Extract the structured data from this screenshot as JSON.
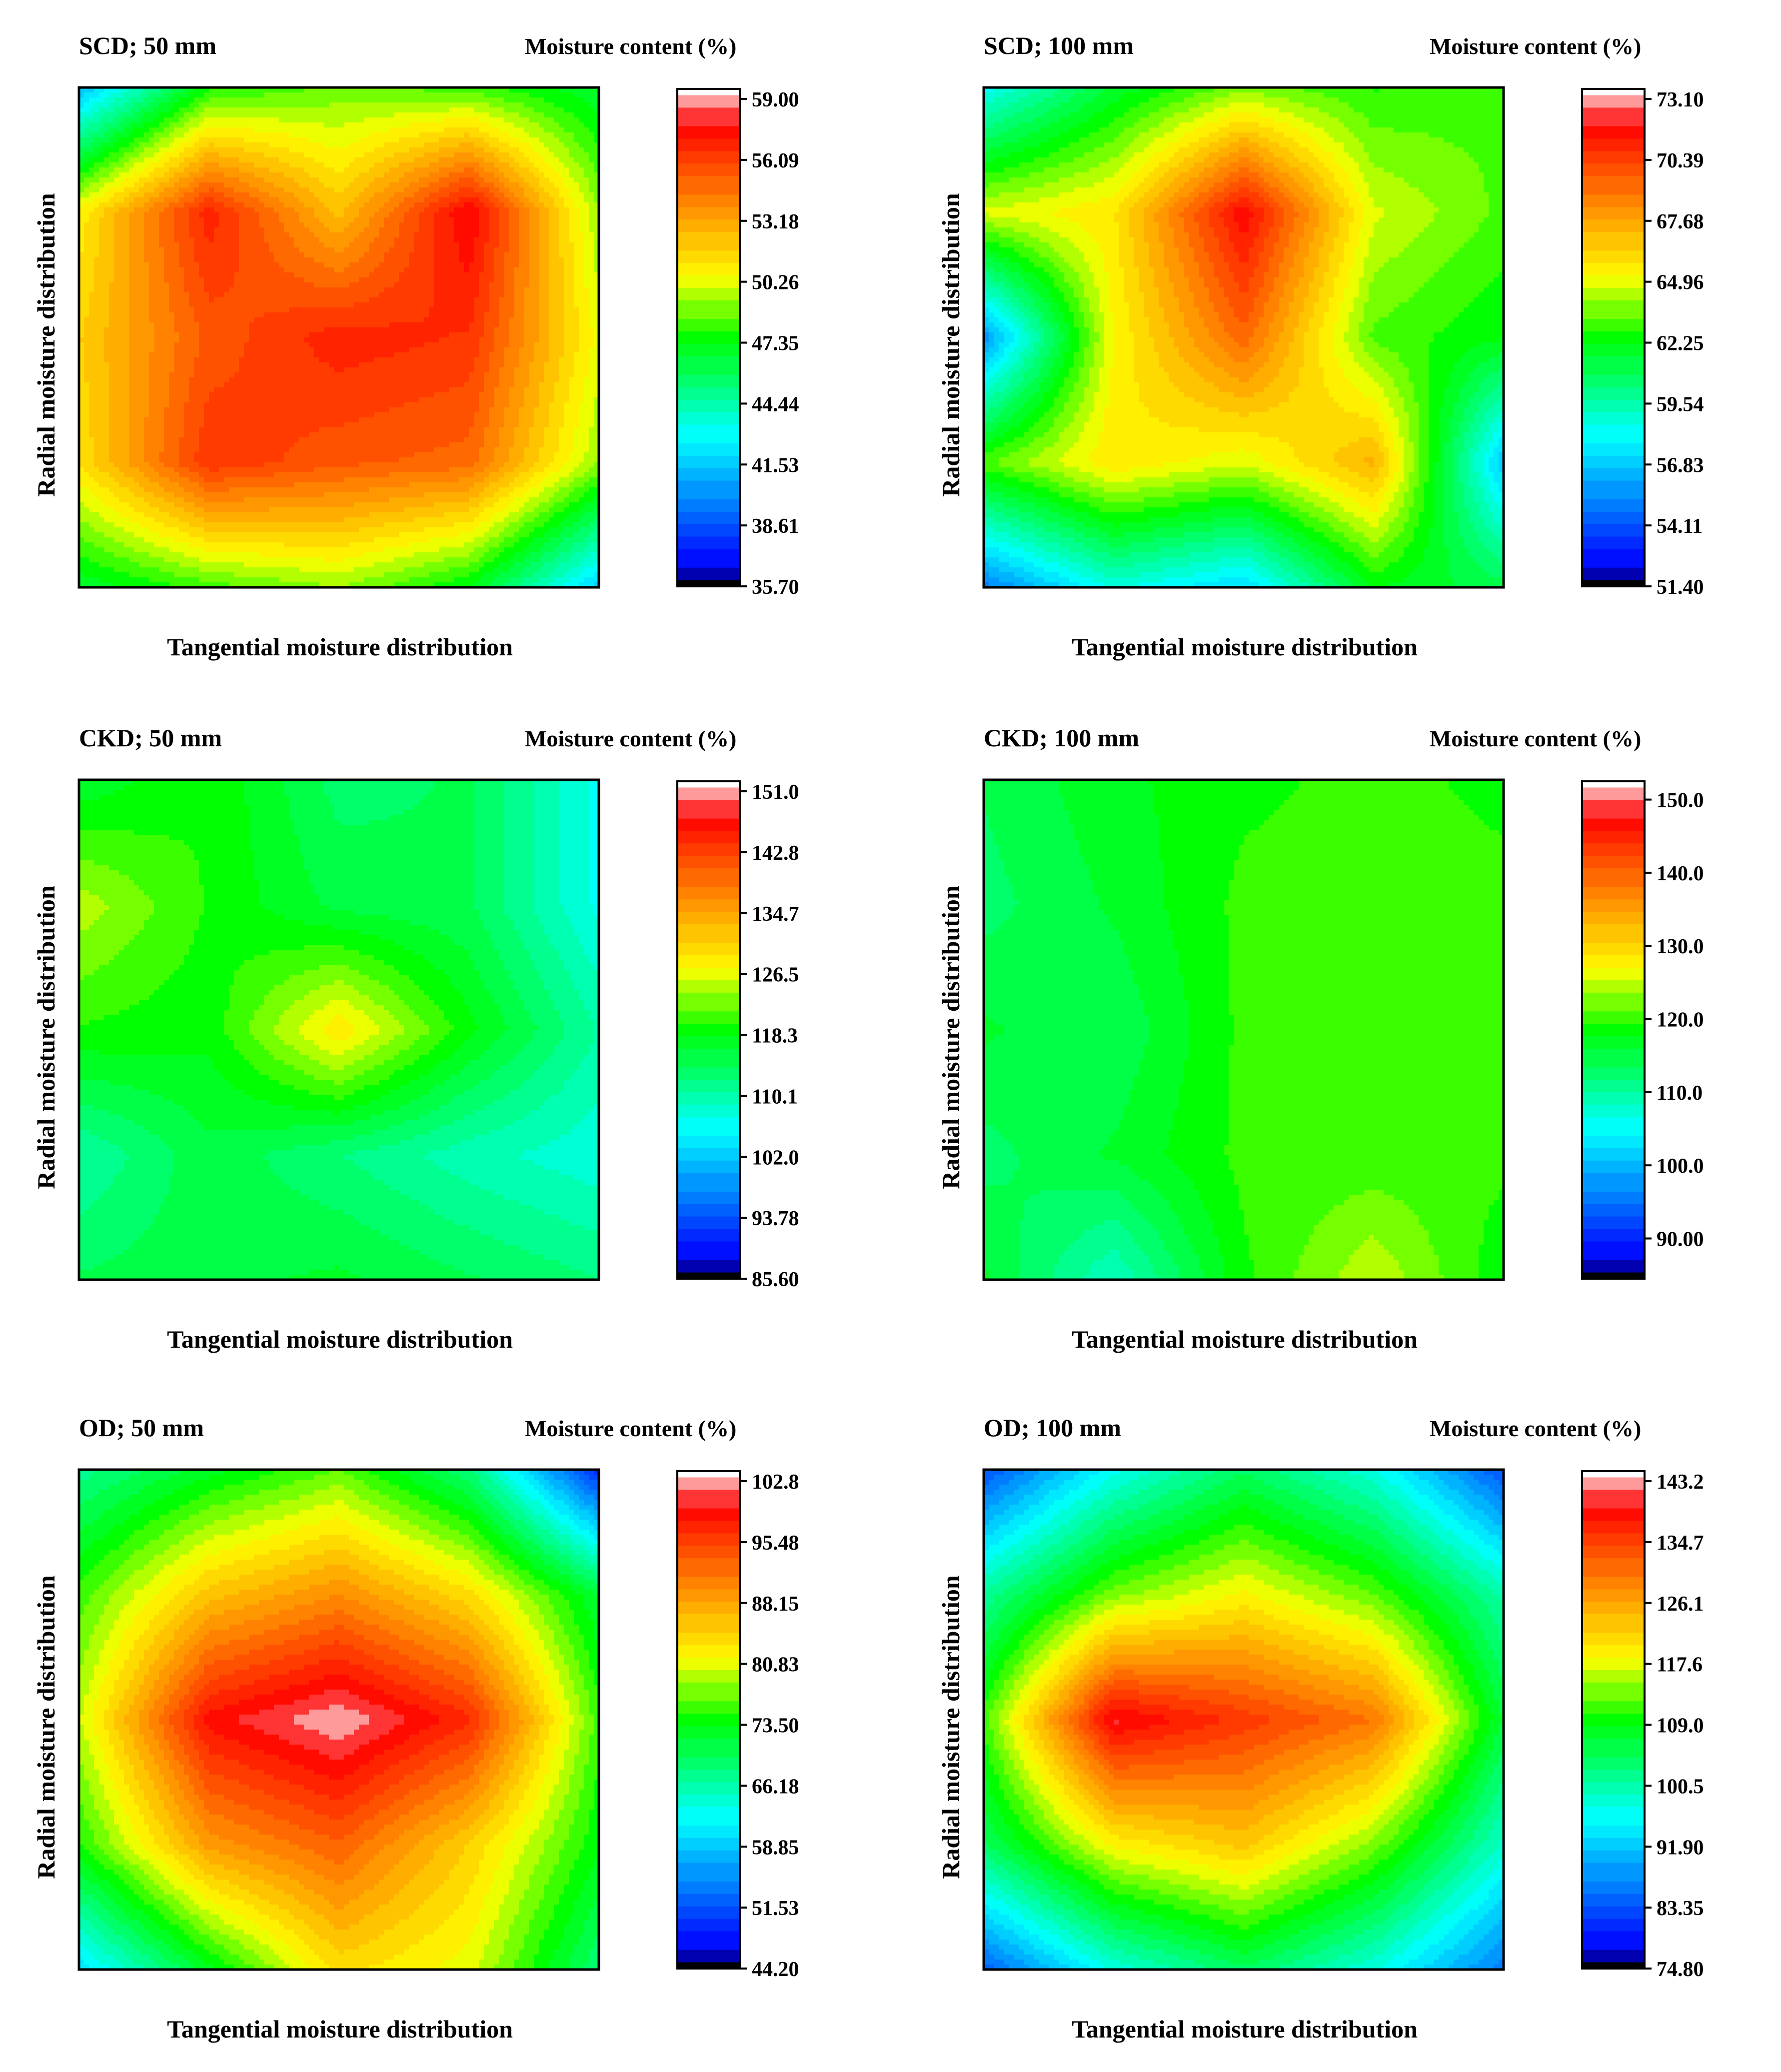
{
  "figure": {
    "colors": {
      "frame": "#000000",
      "background": "#ffffff"
    },
    "colormap": [
      "#000000",
      "#0000ff",
      "#00ffff",
      "#00ff00",
      "#ffff00",
      "#ff8000",
      "#ff0000",
      "#ffffff"
    ]
  },
  "chart_data": [
    {
      "type": "heatmap",
      "title": "SCD; 50 mm",
      "xlabel": "Tangential  moisture distribution",
      "ylabel": "Radial moisture distribution",
      "colorbar_title": "Moisture content (%)",
      "colorbar_ticks": [
        "59.00",
        "56.09",
        "53.18",
        "50.26",
        "47.35",
        "44.44",
        "41.53",
        "38.61",
        "35.70"
      ],
      "vmin": 35.7,
      "vmax": 59.0,
      "grid": [
        [
          41.0,
          47.5,
          48.5,
          48.0,
          46.5
        ],
        [
          50.5,
          56.5,
          52.0,
          57.5,
          49.0
        ],
        [
          51.5,
          55.0,
          56.5,
          56.0,
          50.0
        ],
        [
          51.0,
          56.0,
          55.0,
          54.5,
          49.0
        ],
        [
          46.5,
          48.0,
          49.0,
          47.0,
          41.5
        ]
      ]
    },
    {
      "type": "heatmap",
      "title": "SCD; 100 mm",
      "xlabel": "Tangential  moisture distribution",
      "ylabel": "Radial moisture distribution",
      "colorbar_title": "Moisture content (%)",
      "colorbar_ticks": [
        "73.10",
        "70.39",
        "67.68",
        "64.96",
        "62.25",
        "59.54",
        "56.83",
        "54.11",
        "51.40"
      ],
      "vmin": 51.4,
      "vmax": 73.1,
      "grid": [
        [
          58.0,
          61.5,
          63.5,
          62.5,
          63.0
        ],
        [
          64.5,
          65.5,
          71.5,
          64.5,
          63.0
        ],
        [
          55.5,
          65.0,
          69.0,
          63.0,
          62.0
        ],
        [
          63.0,
          65.5,
          64.5,
          67.0,
          56.5
        ],
        [
          55.0,
          58.5,
          57.0,
          62.0,
          61.0
        ]
      ]
    },
    {
      "type": "heatmap",
      "title": "CKD; 50 mm",
      "xlabel": "Tangential moisture distribution",
      "ylabel": "Radial moisture distribution",
      "colorbar_title": "Moisture content (%)",
      "colorbar_ticks": [
        "151.0",
        "142.8",
        "134.7",
        "126.5",
        "118.3",
        "110.1",
        "102.0",
        "93.78",
        "85.60"
      ],
      "vmin": 85.6,
      "vmax": 151.0,
      "grid": [
        [
          116.0,
          119.0,
          113.0,
          114.0,
          106.0
        ],
        [
          124.0,
          119.0,
          115.0,
          114.0,
          106.0
        ],
        [
          119.0,
          118.0,
          128.0,
          118.0,
          110.0
        ],
        [
          110.0,
          115.0,
          112.0,
          109.0,
          107.0
        ],
        [
          114.0,
          115.0,
          116.0,
          114.0,
          112.0
        ]
      ]
    },
    {
      "type": "heatmap",
      "title": "CKD; 100 mm",
      "xlabel": "Tangential moisture distribution",
      "ylabel": "Radial moisture distribution",
      "colorbar_title": "Moisture content (%)",
      "colorbar_ticks": [
        "150.0",
        "140.0",
        "130.0",
        "120.0",
        "110.0",
        "100.0",
        "90.00"
      ],
      "tick_values": [
        150,
        140,
        130,
        120,
        110,
        100,
        90
      ],
      "vmin": 84.5,
      "vmax": 152.5,
      "grid": [
        [
          114.0,
          117.0,
          119.0,
          120.0,
          119.0
        ],
        [
          113.0,
          116.0,
          120.0,
          120.0,
          120.0
        ],
        [
          116.0,
          114.0,
          120.0,
          120.0,
          120.0
        ],
        [
          113.0,
          116.0,
          120.0,
          120.0,
          120.0
        ],
        [
          116.0,
          108.0,
          119.0,
          125.0,
          118.0
        ]
      ]
    },
    {
      "type": "heatmap",
      "title": "OD; 50 mm",
      "xlabel": "Tangential moisture distribution",
      "ylabel": "Radial moisture distribution",
      "colorbar_title": "Moisture content (%)",
      "colorbar_ticks": [
        "102.8",
        "95.48",
        "88.15",
        "80.83",
        "73.50",
        "66.18",
        "58.85",
        "51.53",
        "44.20"
      ],
      "vmin": 44.2,
      "vmax": 102.8,
      "grid": [
        [
          67.0,
          72.0,
          76.0,
          68.0,
          49.0
        ],
        [
          75.0,
          85.0,
          89.0,
          83.0,
          71.0
        ],
        [
          79.0,
          98.0,
          102.0,
          96.0,
          75.0
        ],
        [
          74.0,
          88.0,
          92.0,
          84.0,
          73.0
        ],
        [
          60.0,
          72.0,
          83.0,
          80.0,
          68.0
        ]
      ]
    },
    {
      "type": "heatmap",
      "title": "OD; 100 mm",
      "xlabel": "Tangential  moisture distribution",
      "ylabel": "Radial moisture distribution",
      "colorbar_title": "Moisture content (%)",
      "colorbar_ticks": [
        "143.2",
        "134.7",
        "126.1",
        "117.6",
        "109.0",
        "100.5",
        "91.90",
        "83.35",
        "74.80"
      ],
      "vmin": 74.8,
      "vmax": 143.2,
      "grid": [
        [
          83.0,
          96.0,
          104.0,
          97.0,
          83.0
        ],
        [
          101.0,
          113.0,
          118.0,
          112.0,
          100.0
        ],
        [
          111.0,
          139.0,
          134.0,
          129.0,
          106.0
        ],
        [
          104.0,
          118.0,
          122.0,
          113.0,
          98.0
        ],
        [
          84.0,
          97.0,
          104.0,
          97.0,
          86.0
        ]
      ]
    }
  ]
}
